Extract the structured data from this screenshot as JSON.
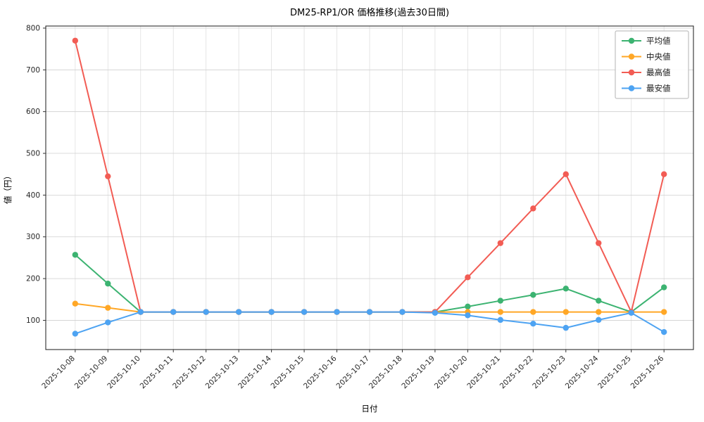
{
  "chart_data": {
    "type": "line",
    "title": "DM25-RP1/OR 価格推移(過去30日間)",
    "xlabel": "日付",
    "ylabel": "値（円）",
    "x": [
      "2025-10-08",
      "2025-10-09",
      "2025-10-10",
      "2025-10-11",
      "2025-10-12",
      "2025-10-13",
      "2025-10-14",
      "2025-10-15",
      "2025-10-16",
      "2025-10-17",
      "2025-10-18",
      "2025-10-19",
      "2025-10-20",
      "2025-10-21",
      "2025-10-22",
      "2025-10-23",
      "2025-10-24",
      "2025-10-25",
      "2025-10-26"
    ],
    "series": [
      {
        "name": "平均値",
        "color": "#3cb371",
        "values": [
          257,
          188,
          120,
          120,
          120,
          120,
          120,
          120,
          120,
          120,
          120,
          120,
          133,
          147,
          161,
          176,
          147,
          120,
          179
        ]
      },
      {
        "name": "中央値",
        "color": "#ffa726",
        "values": [
          140,
          130,
          120,
          120,
          120,
          120,
          120,
          120,
          120,
          120,
          120,
          120,
          120,
          120,
          120,
          120,
          120,
          120,
          120
        ]
      },
      {
        "name": "最高値",
        "color": "#f25c54",
        "values": [
          770,
          445,
          120,
          120,
          120,
          120,
          120,
          120,
          120,
          120,
          120,
          120,
          203,
          285,
          368,
          450,
          285,
          120,
          450
        ]
      },
      {
        "name": "最安値",
        "color": "#4da3f2",
        "values": [
          68,
          95,
          120,
          120,
          120,
          120,
          120,
          120,
          120,
          120,
          120,
          118,
          112,
          101,
          92,
          82,
          101,
          118,
          72
        ]
      }
    ],
    "ylim": [
      30,
      805
    ],
    "yticks": [
      100,
      200,
      300,
      400,
      500,
      600,
      700,
      800
    ],
    "grid": true,
    "legend_position": "upper right"
  }
}
